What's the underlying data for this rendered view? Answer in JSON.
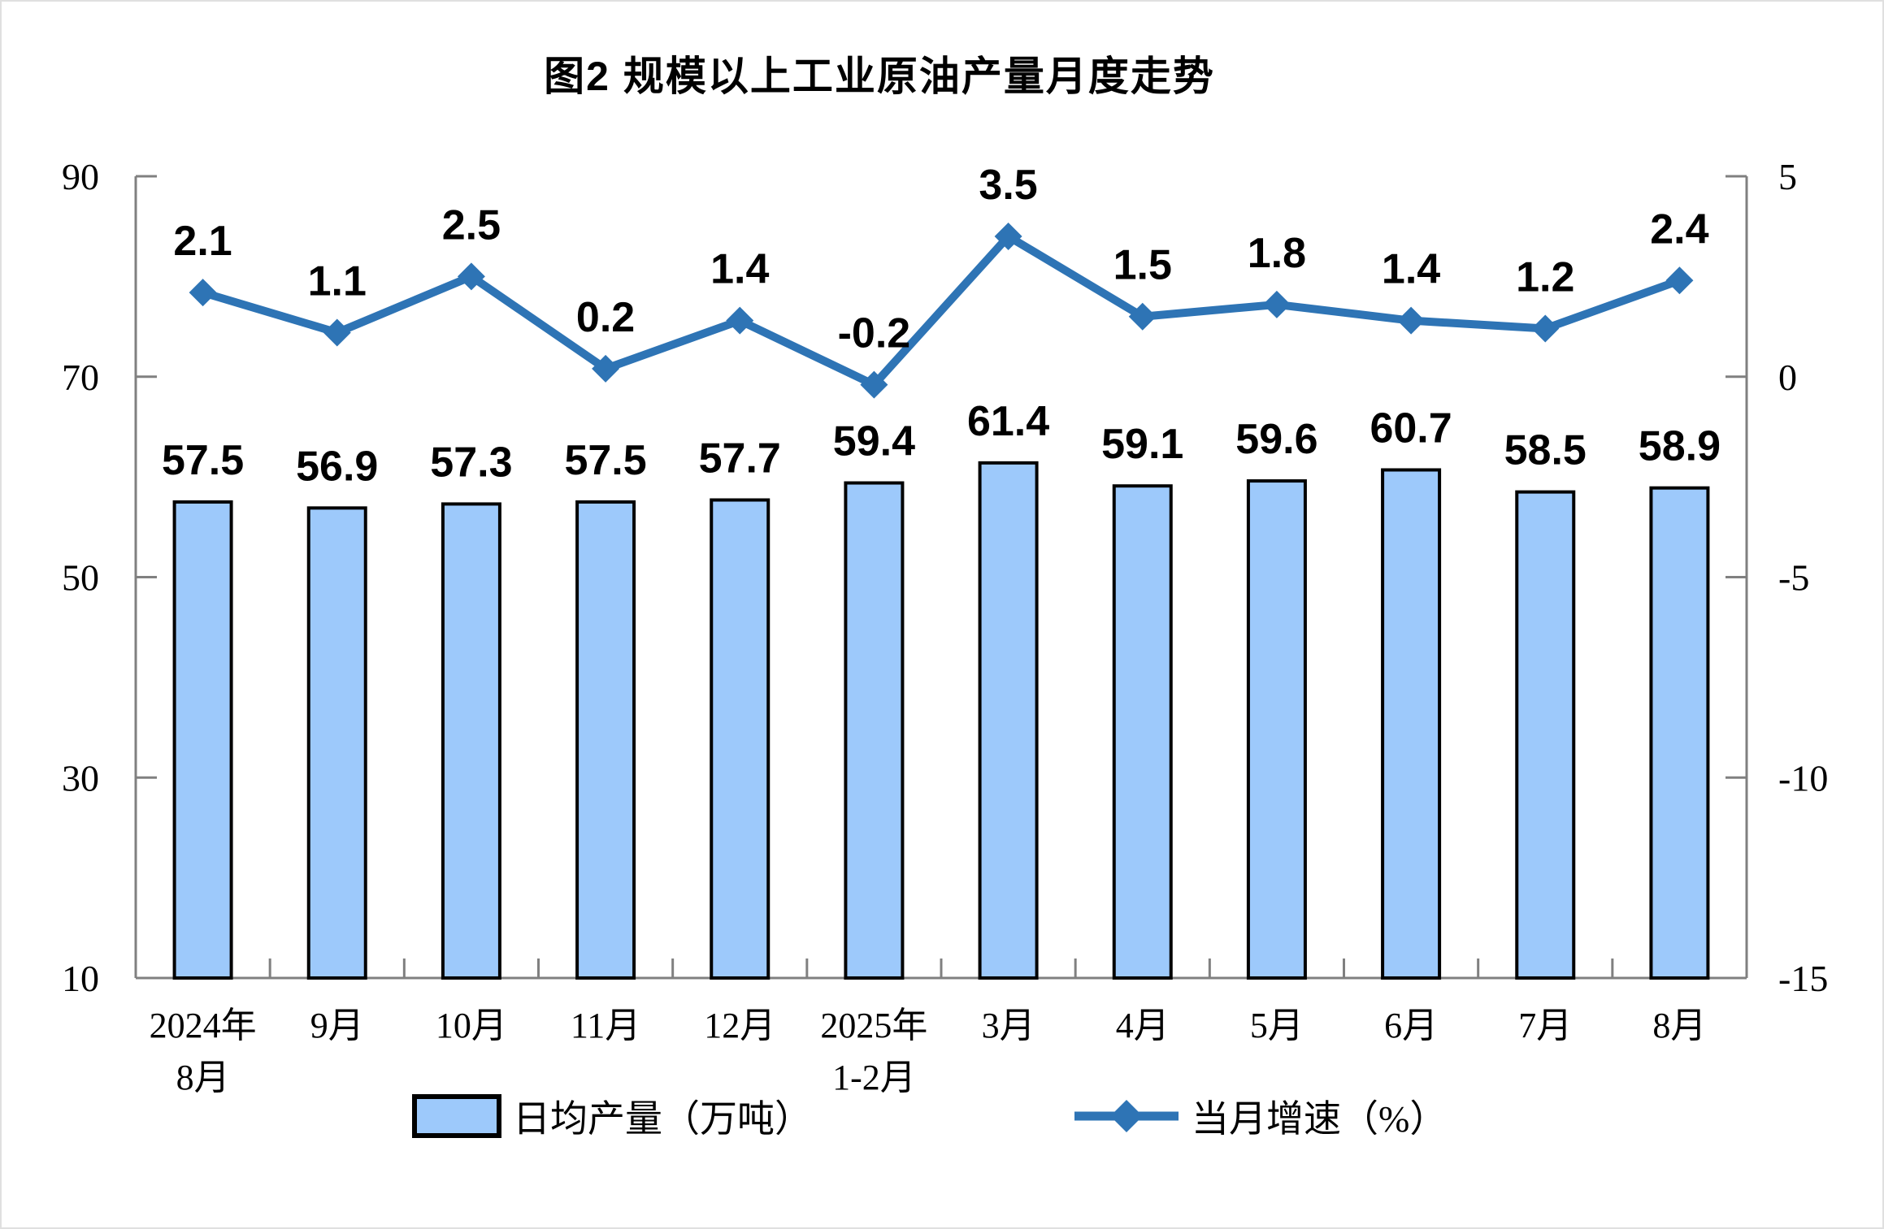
{
  "page": {
    "title": "图2 规模以上工业原油产量月度走势"
  },
  "legend": {
    "bar_label": "日均产量（万吨）",
    "line_label": "当月增速（%）"
  },
  "chart_data": {
    "type": "combo-bar-line",
    "title": "图2 规模以上工业原油产量月度走势",
    "categories": [
      [
        "2024年",
        "8月"
      ],
      [
        "9月"
      ],
      [
        "10月"
      ],
      [
        "11月"
      ],
      [
        "12月"
      ],
      [
        "2025年",
        "1-2月"
      ],
      [
        "3月"
      ],
      [
        "4月"
      ],
      [
        "5月"
      ],
      [
        "6月"
      ],
      [
        "7月"
      ],
      [
        "8月"
      ]
    ],
    "series": [
      {
        "name": "日均产量（万吨）",
        "type": "bar",
        "axis": "left",
        "values": [
          57.5,
          56.9,
          57.3,
          57.5,
          57.7,
          59.4,
          61.4,
          59.1,
          59.6,
          60.7,
          58.5,
          58.9
        ]
      },
      {
        "name": "当月增速（%）",
        "type": "line",
        "axis": "right",
        "values": [
          2.1,
          1.1,
          2.5,
          0.2,
          1.4,
          -0.2,
          3.5,
          1.5,
          1.8,
          1.4,
          1.2,
          2.4
        ]
      }
    ],
    "left_axis": {
      "min": 10,
      "max": 90,
      "ticks": [
        90,
        70,
        50,
        30,
        10
      ]
    },
    "right_axis": {
      "min": -15,
      "max": 5,
      "ticks": [
        5,
        0,
        -5,
        -10,
        -15
      ]
    },
    "grid": false,
    "legend_position": "bottom",
    "colors": {
      "bar_fill": "#9DC9FB",
      "bar_border": "#000000",
      "line": "#2E74B5",
      "marker": "#2E74B5",
      "axis": "#808080",
      "text": "#000000"
    }
  }
}
